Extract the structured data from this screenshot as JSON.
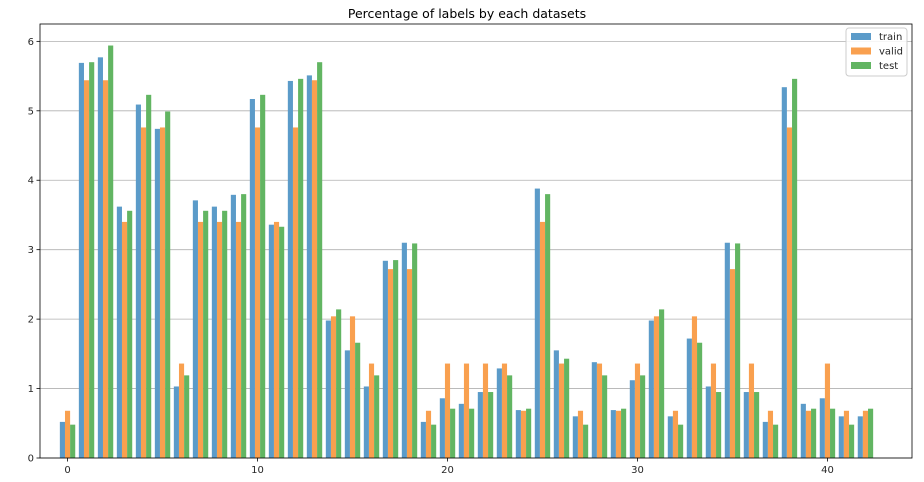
{
  "chart_data": {
    "type": "bar",
    "title": "Percentage of labels by each datasets",
    "xlabel": "",
    "ylabel": "",
    "xlim": [
      -1.45,
      44.45
    ],
    "ylim": [
      0,
      6.25
    ],
    "xticks": [
      0,
      10,
      20,
      30,
      40
    ],
    "yticks": [
      0,
      1,
      2,
      3,
      4,
      5,
      6
    ],
    "grid": "y",
    "legend_position": "top-right",
    "bar_width": 0.27,
    "categories": [
      0,
      1,
      2,
      3,
      4,
      5,
      6,
      7,
      8,
      9,
      10,
      11,
      12,
      13,
      14,
      15,
      16,
      17,
      18,
      19,
      20,
      21,
      22,
      23,
      24,
      25,
      26,
      27,
      28,
      29,
      30,
      31,
      32,
      33,
      34,
      35,
      36,
      37,
      38,
      39,
      40,
      41,
      42
    ],
    "series": [
      {
        "name": "train",
        "color": "#5b9bc9",
        "values": [
          0.52,
          5.69,
          5.77,
          3.62,
          5.09,
          4.74,
          1.03,
          3.71,
          3.62,
          3.79,
          5.17,
          3.36,
          5.43,
          5.51,
          1.98,
          1.55,
          1.03,
          2.84,
          3.1,
          0.52,
          0.86,
          0.78,
          0.95,
          1.29,
          0.69,
          3.88,
          1.55,
          0.6,
          1.38,
          0.69,
          1.12,
          1.98,
          0.6,
          1.72,
          1.03,
          3.1,
          0.95,
          0.52,
          5.34,
          0.78,
          0.86,
          0.6,
          0.6
        ]
      },
      {
        "name": "valid",
        "color": "#f9a04f",
        "values": [
          0.68,
          5.44,
          5.44,
          3.4,
          4.76,
          4.76,
          1.36,
          3.4,
          3.4,
          3.4,
          4.76,
          3.4,
          4.76,
          5.44,
          2.04,
          2.04,
          1.36,
          2.72,
          2.72,
          0.68,
          1.36,
          1.36,
          1.36,
          1.36,
          0.68,
          3.4,
          1.36,
          0.68,
          1.36,
          0.68,
          1.36,
          2.04,
          0.68,
          2.04,
          1.36,
          2.72,
          1.36,
          0.68,
          4.76,
          0.68,
          1.36,
          0.68,
          0.68
        ]
      },
      {
        "name": "test",
        "color": "#62b562",
        "values": [
          0.48,
          5.7,
          5.94,
          3.56,
          5.23,
          4.99,
          1.19,
          3.56,
          3.56,
          3.8,
          5.23,
          3.33,
          5.46,
          5.7,
          2.14,
          1.66,
          1.19,
          2.85,
          3.09,
          0.48,
          0.71,
          0.71,
          0.95,
          1.19,
          0.71,
          3.8,
          1.43,
          0.48,
          1.19,
          0.71,
          1.19,
          2.14,
          0.48,
          1.66,
          0.95,
          3.09,
          0.95,
          0.48,
          5.46,
          0.71,
          0.71,
          0.48,
          0.71
        ]
      }
    ]
  }
}
